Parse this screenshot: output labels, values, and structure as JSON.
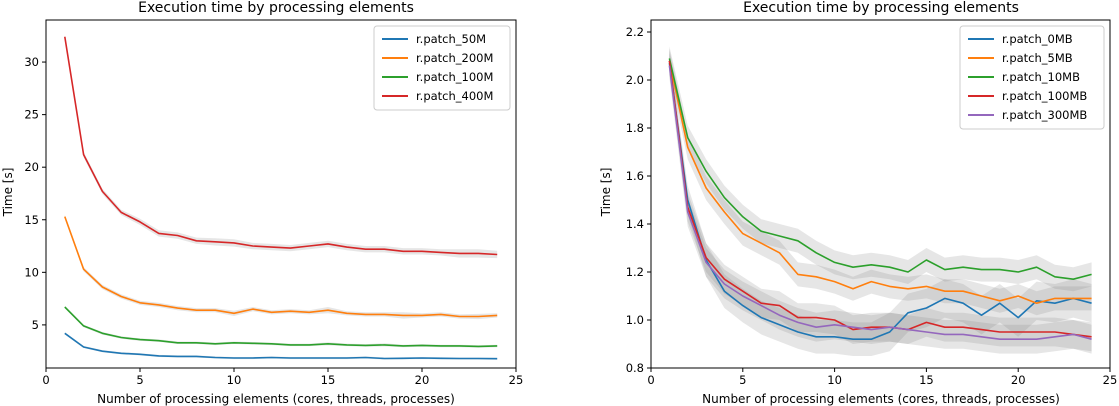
{
  "chart_data": [
    {
      "type": "line",
      "title": "Execution time by processing elements",
      "xlabel": "Number of processing elements (cores, threads, processes)",
      "ylabel": "Time [s]",
      "xlim": [
        0,
        25
      ],
      "ylim": [
        0.9,
        34.0
      ],
      "xticks": [
        0,
        5,
        10,
        15,
        20,
        25
      ],
      "yticks": [
        5,
        10,
        15,
        20,
        25,
        30
      ],
      "ytick_labels": [
        "5",
        "10",
        "15",
        "20",
        "25",
        "30"
      ],
      "legend_position": "top-right",
      "x": [
        1,
        2,
        3,
        4,
        5,
        6,
        7,
        8,
        9,
        10,
        11,
        12,
        13,
        14,
        15,
        16,
        17,
        18,
        19,
        20,
        21,
        22,
        23,
        24
      ],
      "series": [
        {
          "name": "r.patch_50M",
          "color": "#1f77b4",
          "values": [
            4.2,
            2.9,
            2.5,
            2.3,
            2.2,
            2.05,
            2.0,
            2.0,
            1.9,
            1.85,
            1.85,
            1.9,
            1.85,
            1.85,
            1.85,
            1.85,
            1.9,
            1.8,
            1.82,
            1.85,
            1.82,
            1.8,
            1.8,
            1.78
          ],
          "band": [
            0.1,
            0.1,
            0.1,
            0.1,
            0.1,
            0.1,
            0.1,
            0.1,
            0.1,
            0.1,
            0.1,
            0.1,
            0.1,
            0.1,
            0.1,
            0.1,
            0.1,
            0.1,
            0.1,
            0.1,
            0.1,
            0.1,
            0.1,
            0.1
          ]
        },
        {
          "name": "r.patch_200M",
          "color": "#ff7f0e",
          "values": [
            15.3,
            10.3,
            8.6,
            7.7,
            7.1,
            6.9,
            6.6,
            6.4,
            6.4,
            6.1,
            6.5,
            6.2,
            6.3,
            6.2,
            6.4,
            6.1,
            6.0,
            6.0,
            5.9,
            5.9,
            6.0,
            5.8,
            5.8,
            5.9
          ],
          "band": [
            0.15,
            0.2,
            0.2,
            0.2,
            0.2,
            0.2,
            0.2,
            0.2,
            0.2,
            0.25,
            0.2,
            0.2,
            0.2,
            0.2,
            0.3,
            0.2,
            0.2,
            0.2,
            0.3,
            0.2,
            0.2,
            0.2,
            0.25,
            0.2
          ]
        },
        {
          "name": "r.patch_100M",
          "color": "#2ca02c",
          "values": [
            6.7,
            4.9,
            4.2,
            3.8,
            3.6,
            3.5,
            3.3,
            3.3,
            3.2,
            3.3,
            3.25,
            3.2,
            3.1,
            3.1,
            3.2,
            3.1,
            3.05,
            3.1,
            3.0,
            3.05,
            3.0,
            3.0,
            2.95,
            3.0
          ],
          "band": [
            0.1,
            0.12,
            0.12,
            0.12,
            0.12,
            0.12,
            0.12,
            0.12,
            0.12,
            0.12,
            0.12,
            0.12,
            0.12,
            0.12,
            0.15,
            0.12,
            0.12,
            0.15,
            0.12,
            0.12,
            0.12,
            0.12,
            0.12,
            0.12
          ]
        },
        {
          "name": "r.patch_400M",
          "color": "#d62728",
          "values": [
            32.4,
            21.2,
            17.7,
            15.7,
            14.8,
            13.7,
            13.5,
            13.0,
            12.9,
            12.8,
            12.5,
            12.4,
            12.3,
            12.5,
            12.7,
            12.4,
            12.2,
            12.2,
            12.0,
            12.0,
            11.9,
            11.8,
            11.8,
            11.7
          ],
          "band": [
            0.15,
            0.25,
            0.25,
            0.25,
            0.3,
            0.3,
            0.3,
            0.3,
            0.35,
            0.35,
            0.3,
            0.3,
            0.3,
            0.3,
            0.3,
            0.3,
            0.3,
            0.3,
            0.3,
            0.3,
            0.3,
            0.4,
            0.4,
            0.35
          ]
        }
      ]
    },
    {
      "type": "line",
      "title": "Execution time by processing elements",
      "xlabel": "Number of processing elements (cores, threads, processes)",
      "ylabel": "Time [s]",
      "xlim": [
        0,
        25
      ],
      "ylim": [
        0.8,
        2.25
      ],
      "xticks": [
        0,
        5,
        10,
        15,
        20,
        25
      ],
      "yticks": [
        0.8,
        1.0,
        1.2,
        1.4,
        1.6,
        1.8,
        2.0,
        2.2
      ],
      "ytick_labels": [
        "0.8",
        "1.0",
        "1.2",
        "1.4",
        "1.6",
        "1.8",
        "2.0",
        "2.2"
      ],
      "legend_position": "top-right",
      "x": [
        1,
        2,
        3,
        4,
        5,
        6,
        7,
        8,
        9,
        10,
        11,
        12,
        13,
        14,
        15,
        16,
        17,
        18,
        19,
        20,
        21,
        22,
        23,
        24
      ],
      "series": [
        {
          "name": "r.patch_0MB",
          "color": "#1f77b4",
          "values": [
            2.07,
            1.5,
            1.25,
            1.12,
            1.06,
            1.01,
            0.98,
            0.95,
            0.93,
            0.93,
            0.92,
            0.92,
            0.95,
            1.03,
            1.05,
            1.09,
            1.07,
            1.02,
            1.07,
            1.01,
            1.08,
            1.07,
            1.09,
            1.07
          ],
          "band": [
            0.05,
            0.06,
            0.07,
            0.07,
            0.07,
            0.07,
            0.07,
            0.07,
            0.07,
            0.07,
            0.07,
            0.07,
            0.08,
            0.08,
            0.08,
            0.08,
            0.08,
            0.08,
            0.08,
            0.08,
            0.08,
            0.08,
            0.08,
            0.08
          ]
        },
        {
          "name": "r.patch_5MB",
          "color": "#ff7f0e",
          "values": [
            2.08,
            1.72,
            1.55,
            1.45,
            1.36,
            1.32,
            1.28,
            1.19,
            1.18,
            1.16,
            1.13,
            1.16,
            1.14,
            1.13,
            1.14,
            1.12,
            1.12,
            1.1,
            1.08,
            1.1,
            1.07,
            1.09,
            1.09,
            1.09
          ],
          "band": [
            0.05,
            0.05,
            0.05,
            0.05,
            0.05,
            0.05,
            0.05,
            0.05,
            0.05,
            0.05,
            0.05,
            0.05,
            0.05,
            0.05,
            0.05,
            0.05,
            0.05,
            0.05,
            0.05,
            0.05,
            0.05,
            0.05,
            0.05,
            0.05
          ]
        },
        {
          "name": "r.patch_10MB",
          "color": "#2ca02c",
          "values": [
            2.09,
            1.76,
            1.62,
            1.51,
            1.43,
            1.37,
            1.35,
            1.33,
            1.28,
            1.24,
            1.22,
            1.23,
            1.22,
            1.2,
            1.25,
            1.21,
            1.22,
            1.21,
            1.21,
            1.2,
            1.22,
            1.18,
            1.17,
            1.19
          ],
          "band": [
            0.05,
            0.05,
            0.05,
            0.05,
            0.05,
            0.05,
            0.05,
            0.05,
            0.05,
            0.05,
            0.05,
            0.05,
            0.05,
            0.05,
            0.05,
            0.05,
            0.05,
            0.05,
            0.05,
            0.05,
            0.05,
            0.05,
            0.05,
            0.05
          ]
        },
        {
          "name": "r.patch_100MB",
          "color": "#d62728",
          "values": [
            2.08,
            1.47,
            1.26,
            1.17,
            1.12,
            1.07,
            1.06,
            1.01,
            1.01,
            1.0,
            0.96,
            0.97,
            0.97,
            0.96,
            0.99,
            0.97,
            0.97,
            0.96,
            0.95,
            0.95,
            0.95,
            0.95,
            0.94,
            0.93
          ],
          "band": [
            0.05,
            0.06,
            0.06,
            0.06,
            0.06,
            0.06,
            0.06,
            0.06,
            0.06,
            0.06,
            0.06,
            0.06,
            0.06,
            0.06,
            0.06,
            0.06,
            0.06,
            0.06,
            0.06,
            0.06,
            0.06,
            0.06,
            0.06,
            0.06
          ]
        },
        {
          "name": "r.patch_300MB",
          "color": "#9467bd",
          "values": [
            2.06,
            1.45,
            1.24,
            1.15,
            1.1,
            1.06,
            1.02,
            0.99,
            0.97,
            0.98,
            0.97,
            0.96,
            0.97,
            0.96,
            0.95,
            0.94,
            0.94,
            0.93,
            0.92,
            0.92,
            0.92,
            0.93,
            0.94,
            0.92
          ],
          "band": [
            0.05,
            0.06,
            0.06,
            0.06,
            0.06,
            0.06,
            0.06,
            0.06,
            0.06,
            0.06,
            0.06,
            0.06,
            0.06,
            0.06,
            0.06,
            0.06,
            0.06,
            0.06,
            0.06,
            0.06,
            0.06,
            0.06,
            0.06,
            0.06
          ]
        }
      ]
    }
  ]
}
